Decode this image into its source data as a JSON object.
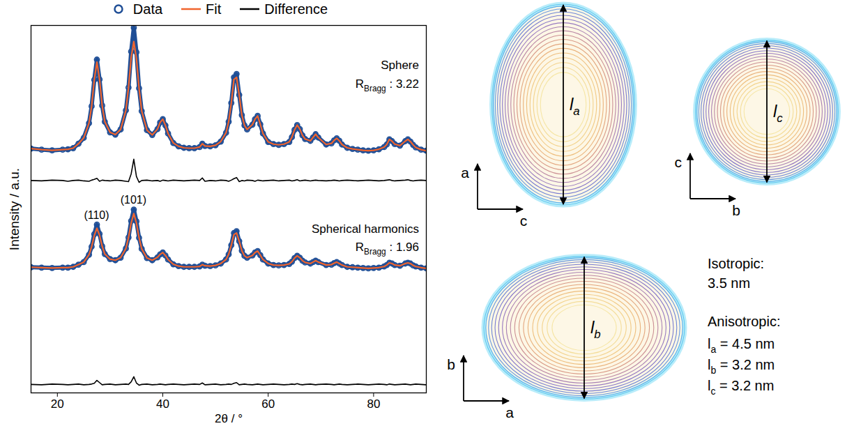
{
  "chart_data": {
    "type": "line",
    "xlabel": "2θ / °",
    "ylabel": "Intensity / a.u.",
    "xlim": [
      15,
      90
    ],
    "xticks": [
      20,
      40,
      60,
      80
    ],
    "ylim": [
      0,
      100
    ],
    "yticks": [],
    "tick_labels": "x",
    "grid": false,
    "legend": "top",
    "x": [
      15,
      17,
      19,
      21,
      22,
      23,
      24,
      25,
      26,
      26.5,
      27,
      27.5,
      28,
      28.5,
      29,
      30,
      31,
      32,
      33,
      33.5,
      34,
      34.5,
      35,
      35.5,
      36,
      37,
      38,
      39,
      39.5,
      40,
      40.5,
      41,
      42,
      43,
      44,
      45,
      46,
      47,
      47.5,
      48,
      49,
      50,
      51,
      52,
      52.5,
      53,
      53.5,
      54,
      54.5,
      55,
      55.5,
      56,
      57,
      57.5,
      58,
      58.5,
      59,
      60,
      61,
      62,
      63,
      64,
      64.5,
      65,
      65.5,
      66,
      66.5,
      67,
      68,
      68.5,
      69,
      69.5,
      71,
      72,
      72.5,
      73,
      73.5,
      74,
      75,
      76,
      77,
      78,
      79,
      80,
      81,
      82,
      82.5,
      83,
      83.5,
      84,
      85,
      86,
      86.5,
      87,
      87.5,
      88,
      89,
      90
    ],
    "panels": [
      {
        "title": "Sphere",
        "r_bragg": {
          "base": "R",
          "sub": "Bragg",
          "rest": " : 3.22"
        },
        "series": [
          {
            "name": "Data",
            "type": "scatter",
            "marker": "circle",
            "color": "#1f4e96",
            "values": [
              66.5,
              66.2,
              66.0,
              66.2,
              66.3,
              66.6,
              67.8,
              69.4,
              73.4,
              78.0,
              85.2,
              90.7,
              85.3,
              78.2,
              73.8,
              70.9,
              70.3,
              71.7,
              76.9,
              83.1,
              92.9,
              99.4,
              92.7,
              82.9,
              76.7,
              71.5,
              70.2,
              71.8,
              73.6,
              74.5,
              72.8,
              70.6,
              68.0,
              67.1,
              66.7,
              66.6,
              66.6,
              66.9,
              67.8,
              67.2,
              67.1,
              67.4,
              68.4,
              70.8,
              73.8,
              78.9,
              85.9,
              86.8,
              81.1,
              75.6,
              72.8,
              71.7,
              73.0,
              74.5,
              75.4,
              73.1,
              70.6,
              68.3,
              67.7,
              67.5,
              67.7,
              68.3,
              69.6,
              71.6,
              72.9,
              71.8,
              70.1,
              69.1,
              68.6,
              69.5,
              70.4,
              69.5,
              67.6,
              67.9,
              68.7,
              69.3,
              68.6,
              67.6,
              66.7,
              66.4,
              66.2,
              66.0,
              65.9,
              66.0,
              66.3,
              66.9,
              67.6,
              69.0,
              68.5,
              67.7,
              67.3,
              68.5,
              69.0,
              68.4,
              67.5,
              66.8,
              66.2,
              65.9
            ]
          },
          {
            "name": "Fit",
            "type": "line",
            "color": "#f0642d",
            "values": [
              66.5,
              66.2,
              66.0,
              66.2,
              66.3,
              66.6,
              67.8,
              69.4,
              73.4,
              78.0,
              85.2,
              90.0,
              85.3,
              78.2,
              73.8,
              70.9,
              70.3,
              71.7,
              76.9,
              83.1,
              91.3,
              95.6,
              91.0,
              82.9,
              76.7,
              71.5,
              70.2,
              71.8,
              73.6,
              74.5,
              72.8,
              70.6,
              68.0,
              67.1,
              66.7,
              66.6,
              66.6,
              66.9,
              67.8,
              67.2,
              67.1,
              67.4,
              68.4,
              70.8,
              73.8,
              78.9,
              85.3,
              85.9,
              81.1,
              75.6,
              72.8,
              71.7,
              73.0,
              74.5,
              75.4,
              73.1,
              70.6,
              68.3,
              67.7,
              67.5,
              67.7,
              68.3,
              69.6,
              71.6,
              72.9,
              71.8,
              70.1,
              69.1,
              68.6,
              69.5,
              70.4,
              69.5,
              67.6,
              67.9,
              68.7,
              69.3,
              68.6,
              67.6,
              66.7,
              66.4,
              66.2,
              66.0,
              65.9,
              66.0,
              66.3,
              66.9,
              67.6,
              69.0,
              68.5,
              67.7,
              67.3,
              68.5,
              69.0,
              68.4,
              67.5,
              66.8,
              66.2,
              65.9
            ]
          },
          {
            "name": "Difference",
            "type": "line",
            "color": "#000000",
            "values": [
              57.8,
              57.7,
              57.9,
              57.8,
              57.6,
              57.8,
              57.9,
              57.7,
              57.6,
              57.9,
              58.1,
              58.4,
              57.6,
              57.9,
              57.8,
              57.7,
              57.9,
              57.8,
              57.6,
              57.5,
              59.6,
              63.6,
              58.9,
              57.3,
              57.8,
              57.9,
              57.7,
              57.8,
              57.6,
              57.9,
              57.8,
              57.7,
              57.9,
              57.8,
              57.7,
              57.8,
              57.9,
              57.8,
              58.5,
              57.6,
              57.8,
              57.7,
              57.9,
              57.8,
              57.6,
              57.9,
              58.3,
              58.6,
              57.5,
              57.8,
              57.7,
              57.9,
              57.8,
              57.6,
              57.9,
              57.8,
              57.7,
              57.8,
              57.9,
              57.7,
              57.8,
              57.9,
              57.7,
              57.8,
              58.0,
              57.7,
              57.8,
              57.9,
              57.7,
              57.8,
              57.9,
              57.8,
              57.7,
              57.8,
              57.9,
              57.8,
              57.7,
              57.8,
              57.9,
              57.8,
              57.7,
              57.8,
              57.9,
              57.8,
              57.7,
              57.8,
              57.9,
              58.0,
              57.8,
              57.7,
              57.8,
              57.9,
              58.0,
              57.8,
              57.7,
              57.8,
              57.9,
              57.8
            ]
          }
        ]
      },
      {
        "title": "Spherical harmonics",
        "r_bragg": {
          "base": "R",
          "sub": "Bragg",
          "rest": " : 1.96"
        },
        "peak_labels": [
          {
            "text": "(110)",
            "x": 27.5
          },
          {
            "text": "(101)",
            "x": 34.5
          }
        ],
        "series": [
          {
            "name": "Data",
            "type": "scatter",
            "marker": "circle",
            "color": "#1f4e96",
            "values": [
              34.2,
              34.1,
              34.0,
              34.1,
              34.1,
              34.3,
              34.9,
              35.6,
              37.6,
              39.8,
              43.2,
              45.8,
              43.3,
              39.9,
              37.8,
              36.4,
              36.1,
              36.8,
              39.3,
              42.3,
              46.8,
              49.9,
              46.7,
              42.2,
              39.2,
              36.7,
              36.1,
              36.9,
              37.7,
              38.2,
              37.4,
              36.3,
              35.0,
              34.5,
              34.3,
              34.3,
              34.3,
              34.4,
              34.9,
              34.6,
              34.5,
              34.7,
              35.2,
              36.3,
              37.7,
              40.2,
              43.5,
              44.0,
              41.3,
              38.7,
              37.3,
              36.8,
              37.4,
              38.2,
              38.6,
              37.5,
              36.3,
              35.2,
              34.8,
              34.7,
              34.8,
              35.1,
              35.7,
              36.7,
              37.3,
              36.8,
              36.0,
              35.5,
              35.2,
              35.6,
              36.0,
              35.6,
              34.8,
              34.9,
              35.3,
              35.6,
              35.2,
              34.8,
              34.3,
              34.2,
              34.1,
              34.0,
              33.9,
              34.0,
              34.1,
              34.4,
              34.8,
              35.4,
              35.2,
              34.8,
              34.6,
              35.2,
              35.4,
              35.2,
              34.7,
              34.4,
              34.1,
              33.9
            ]
          },
          {
            "name": "Fit",
            "type": "line",
            "color": "#f0642d",
            "values": [
              34.2,
              34.1,
              34.0,
              34.1,
              34.1,
              34.3,
              34.9,
              35.6,
              37.6,
              39.8,
              42.8,
              44.8,
              42.9,
              39.9,
              37.8,
              36.4,
              36.1,
              36.8,
              39.3,
              42.3,
              46.2,
              48.8,
              46.2,
              42.2,
              39.2,
              36.7,
              36.1,
              36.9,
              37.7,
              38.2,
              37.4,
              36.3,
              35.0,
              34.5,
              34.3,
              34.3,
              34.3,
              34.4,
              34.9,
              34.6,
              34.5,
              34.7,
              35.2,
              36.3,
              37.7,
              40.2,
              43.1,
              43.5,
              41.3,
              38.7,
              37.3,
              36.8,
              37.4,
              38.2,
              38.6,
              37.5,
              36.3,
              35.2,
              34.8,
              34.7,
              34.8,
              35.1,
              35.7,
              36.7,
              37.3,
              36.8,
              36.0,
              35.5,
              35.2,
              35.6,
              36.0,
              35.6,
              34.8,
              34.9,
              35.3,
              35.6,
              35.2,
              34.8,
              34.3,
              34.2,
              34.1,
              34.0,
              33.9,
              34.0,
              34.1,
              34.4,
              34.8,
              35.4,
              35.2,
              34.8,
              34.6,
              35.2,
              35.4,
              35.2,
              34.7,
              34.4,
              34.1,
              33.9
            ]
          },
          {
            "name": "Difference",
            "type": "line",
            "color": "#000000",
            "values": [
              2.3,
              2.2,
              2.4,
              2.3,
              2.2,
              2.3,
              2.4,
              2.2,
              2.3,
              2.4,
              2.6,
              3.4,
              2.8,
              2.2,
              2.3,
              2.4,
              2.2,
              2.3,
              2.4,
              2.3,
              3.0,
              4.4,
              2.7,
              2.1,
              2.3,
              2.4,
              2.2,
              2.3,
              2.4,
              2.3,
              2.2,
              2.3,
              2.4,
              2.3,
              2.2,
              2.3,
              2.4,
              2.3,
              2.7,
              2.2,
              2.3,
              2.4,
              2.2,
              2.3,
              2.4,
              2.3,
              2.6,
              2.8,
              2.2,
              2.3,
              2.4,
              2.3,
              2.2,
              2.3,
              2.4,
              2.3,
              2.2,
              2.3,
              2.4,
              2.3,
              2.2,
              2.3,
              2.4,
              2.3,
              2.5,
              2.3,
              2.2,
              2.3,
              2.4,
              2.3,
              2.2,
              2.3,
              2.4,
              2.3,
              2.2,
              2.3,
              2.4,
              2.3,
              2.2,
              2.3,
              2.4,
              2.3,
              2.2,
              2.3,
              2.4,
              2.3,
              2.2,
              2.4,
              2.3,
              2.2,
              2.3,
              2.4,
              2.3,
              2.2,
              2.3,
              2.4,
              2.3,
              2.2
            ]
          }
        ]
      }
    ]
  },
  "crystallite_shape": {
    "projections": [
      {
        "vertical": "a",
        "horizontal": "c",
        "measure": "a"
      },
      {
        "vertical": "c",
        "horizontal": "b",
        "measure": "c"
      },
      {
        "vertical": "b",
        "horizontal": "a",
        "measure": "b"
      }
    ],
    "isotropic": {
      "label": "Isotropic:",
      "value": 3.5,
      "unit": "nm"
    },
    "anisotropic": {
      "label": "Anisotropic:",
      "symbol": "l",
      "sign": "=",
      "unit": "nm",
      "lengths": [
        {
          "axis": "a",
          "value": 4.5
        },
        {
          "axis": "b",
          "value": 3.2
        },
        {
          "axis": "c",
          "value": 3.2
        }
      ]
    }
  }
}
